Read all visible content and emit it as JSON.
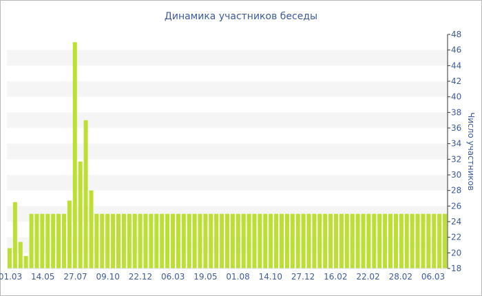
{
  "chart_data": {
    "type": "bar",
    "title": "Динамика участников беседы",
    "ylabel": "Число участников",
    "xlabel": "",
    "ylim": [
      18,
      48
    ],
    "yticks": [
      18,
      20,
      22,
      24,
      26,
      28,
      30,
      32,
      34,
      36,
      38,
      40,
      42,
      44,
      46,
      48
    ],
    "y_axis_position": "right",
    "grid": "horizontal-bands",
    "legend": "none",
    "colors": {
      "bar": "#bbe033",
      "band": "#f5f5f5",
      "text": "#3d5a9e",
      "axis": "#333333",
      "border": "#b8b8b8"
    },
    "x_tick_labels": [
      "01.03",
      "14.05",
      "27.07",
      "09.10",
      "22.12",
      "06.03",
      "19.05",
      "01.08",
      "14.10",
      "27.12",
      "16.02",
      "22.02",
      "28.02",
      "06.03"
    ],
    "values": [
      20.6,
      26.5,
      21.4,
      19.6,
      25,
      25,
      25,
      25,
      25,
      25,
      25,
      26.7,
      47,
      31.7,
      37,
      28,
      25,
      25,
      25,
      25,
      25,
      25,
      25,
      25,
      25,
      25,
      25,
      25,
      25,
      25,
      25,
      25,
      25,
      25,
      25,
      25,
      25,
      25,
      25,
      25,
      25,
      25,
      25,
      25,
      25,
      25,
      25,
      25,
      25,
      25,
      25,
      25,
      25,
      25,
      25,
      25,
      25,
      25,
      25,
      25,
      25,
      25,
      25,
      25,
      25,
      25,
      25,
      25,
      25,
      25,
      25,
      25,
      25,
      25,
      25,
      25,
      25,
      25,
      25,
      25,
      25
    ]
  }
}
